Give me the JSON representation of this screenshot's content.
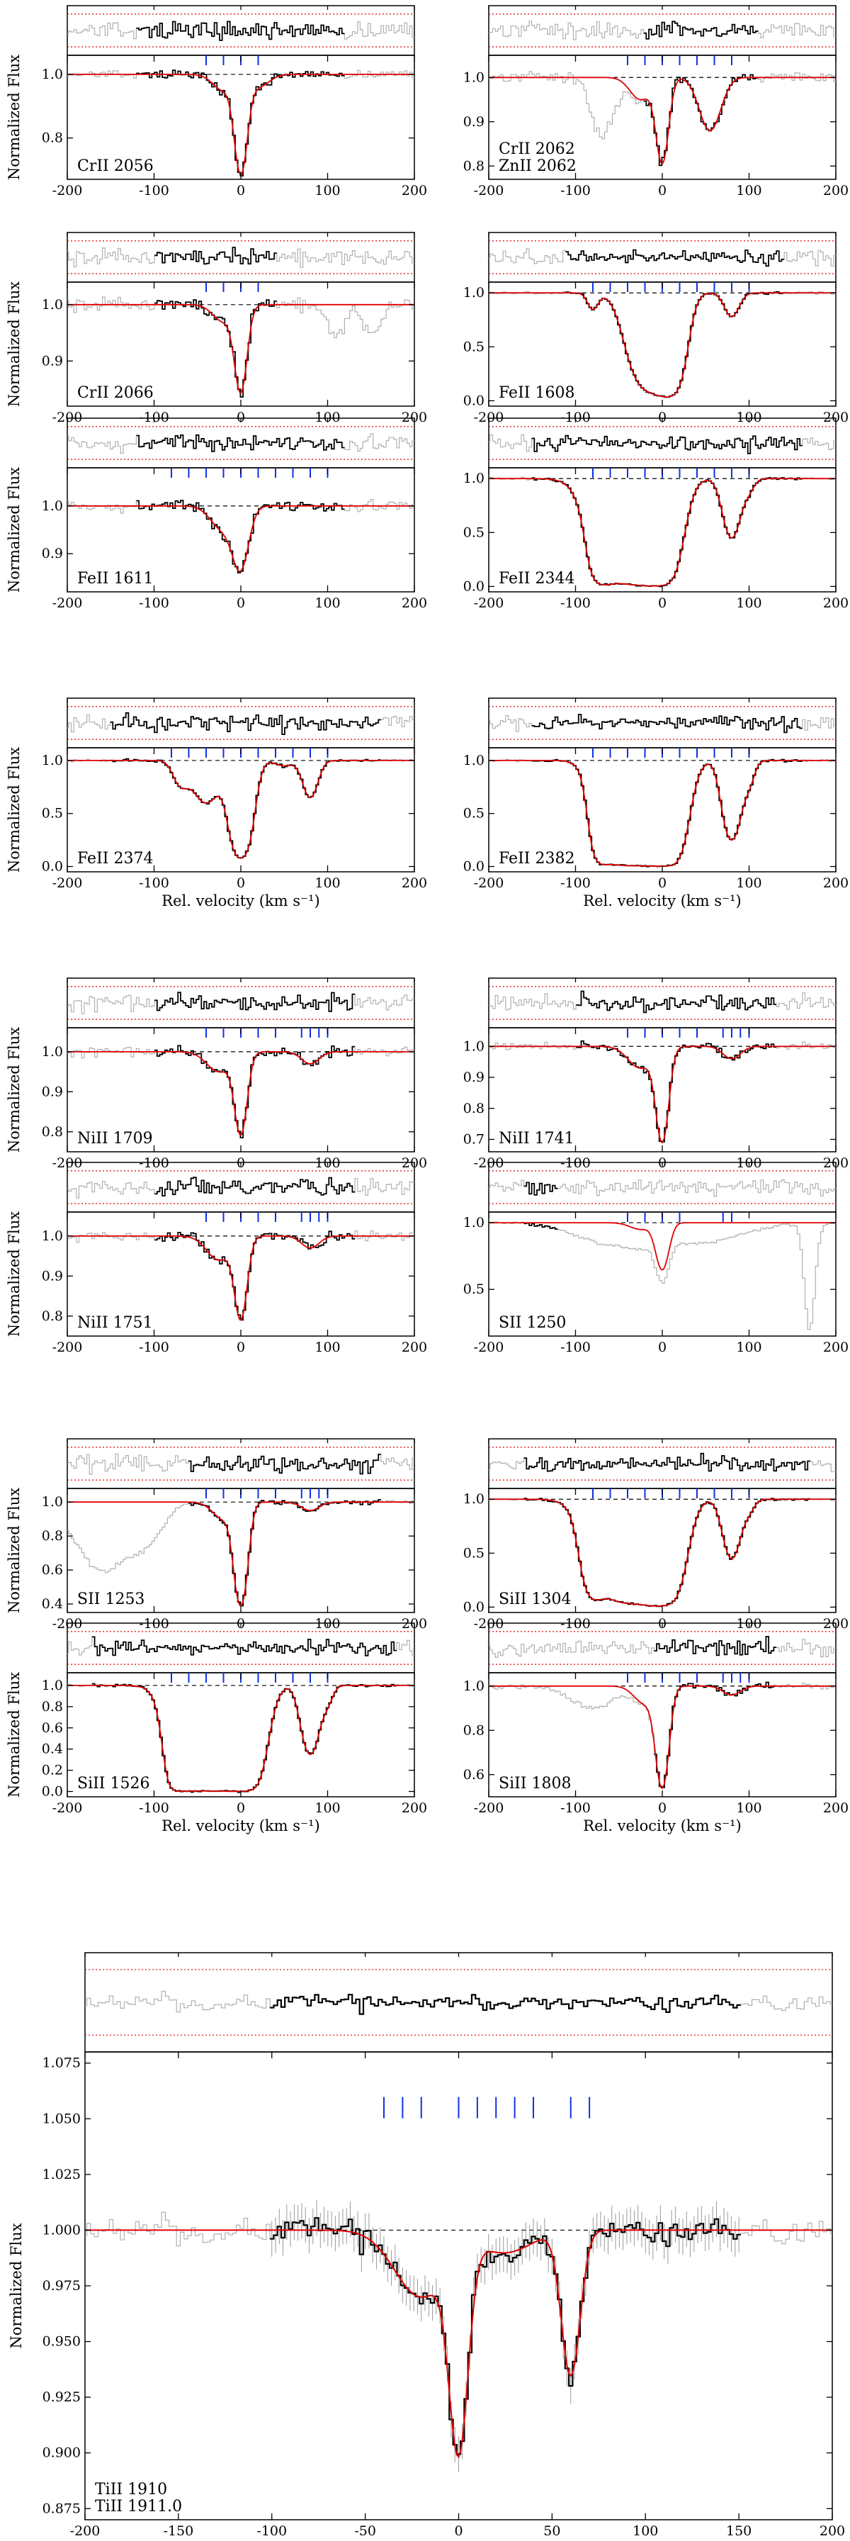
{
  "figure": {
    "ylabel": "Normalized Flux",
    "xlabel": "Rel. velocity  (km s⁻¹)"
  },
  "colors": {
    "data": "#000000",
    "masked_data": "#b0b0b0",
    "model": "#e00000",
    "component_ticks": "#1030e0",
    "continuum": "#000000",
    "residual_bounds": "#e00000"
  },
  "chart_data": [
    {
      "id": "crii2056",
      "type": "line",
      "labels": [
        "CrII 2056"
      ],
      "xlim": [
        -200,
        200
      ],
      "ylim": [
        0.67,
        1.06
      ],
      "yticks": [
        0.8,
        1.0
      ],
      "xticks": [
        -200,
        -100,
        0,
        100,
        200
      ],
      "comps": [
        -40,
        -20,
        0,
        20
      ],
      "lines": [
        {
          "v": 0,
          "d": 0.3,
          "w": 7
        },
        {
          "v": -20,
          "d": 0.05,
          "w": 12
        },
        {
          "v": 20,
          "d": 0.04,
          "w": 12
        }
      ],
      "extra": [],
      "fit": [
        -120,
        120
      ]
    },
    {
      "id": "crii2062",
      "type": "line",
      "labels": [
        "CrII 2062",
        "ZnII 2062"
      ],
      "xlim": [
        -200,
        200
      ],
      "ylim": [
        0.77,
        1.05
      ],
      "yticks": [
        0.8,
        0.9,
        1.0
      ],
      "xticks": [
        -200,
        -100,
        0,
        100,
        200
      ],
      "comps": [
        -40,
        -20,
        0,
        20,
        40,
        60,
        80
      ],
      "lines": [
        {
          "v": 0,
          "d": 0.19,
          "w": 7
        },
        {
          "v": 55,
          "d": 0.12,
          "w": 12
        },
        {
          "v": -25,
          "d": 0.05,
          "w": 12
        }
      ],
      "extra": [
        {
          "v": -75,
          "d": 0.1,
          "w": 9
        },
        {
          "v": -60,
          "d": 0.08,
          "w": 10
        }
      ],
      "fit": [
        -20,
        110
      ]
    },
    {
      "id": "crii2066",
      "type": "line",
      "labels": [
        "CrII 2066"
      ],
      "xlim": [
        -200,
        200
      ],
      "ylim": [
        0.82,
        1.04
      ],
      "yticks": [
        0.9,
        1.0
      ],
      "xticks": [
        -200,
        -100,
        0,
        100,
        200
      ],
      "comps": [
        -40,
        -20,
        0,
        20
      ],
      "lines": [
        {
          "v": 0,
          "d": 0.15,
          "w": 7
        },
        {
          "v": -20,
          "d": 0.03,
          "w": 12
        }
      ],
      "extra": [
        {
          "v": 110,
          "d": 0.06,
          "w": 9
        },
        {
          "v": 150,
          "d": 0.05,
          "w": 10
        }
      ],
      "fit": [
        -100,
        40
      ]
    },
    {
      "id": "feii1608",
      "type": "line",
      "labels": [
        "FeII 1608"
      ],
      "xlim": [
        -200,
        200
      ],
      "ylim": [
        -0.05,
        1.1
      ],
      "yticks": [
        0.0,
        0.5,
        1.0
      ],
      "xticks": [
        -200,
        -100,
        0,
        100,
        200
      ],
      "comps": [
        -80,
        -60,
        -40,
        -20,
        0,
        20,
        40,
        60,
        80,
        100
      ],
      "lines": [
        {
          "v": -15,
          "d": 0.9,
          "w": 18
        },
        {
          "v": 10,
          "d": 0.9,
          "w": 12
        },
        {
          "v": 80,
          "d": 0.22,
          "w": 8
        },
        {
          "v": -80,
          "d": 0.15,
          "w": 6
        }
      ],
      "extra": [],
      "fit": [
        -110,
        140
      ]
    },
    {
      "id": "feii1611",
      "type": "line",
      "labels": [
        "FeII 1611"
      ],
      "xlim": [
        -200,
        200
      ],
      "ylim": [
        0.82,
        1.08
      ],
      "yticks": [
        0.9,
        1.0
      ],
      "xticks": [
        -200,
        -100,
        0,
        100,
        200
      ],
      "comps": [
        -80,
        -60,
        -40,
        -20,
        0,
        20,
        40,
        60,
        80,
        100
      ],
      "lines": [
        {
          "v": 0,
          "d": 0.12,
          "w": 9
        },
        {
          "v": -20,
          "d": 0.05,
          "w": 14
        }
      ],
      "extra": [],
      "fit": [
        -120,
        120
      ]
    },
    {
      "id": "feii2344",
      "type": "line",
      "labels": [
        "FeII 2344"
      ],
      "xlim": [
        -200,
        200
      ],
      "ylim": [
        -0.05,
        1.1
      ],
      "yticks": [
        0.0,
        0.5,
        1.0
      ],
      "xticks": [
        -200,
        -100,
        0,
        100,
        200
      ],
      "comps": [
        -80,
        -60,
        -40,
        -20,
        0,
        20,
        40,
        60,
        80,
        100
      ],
      "lines": [
        {
          "v": -40,
          "d": 0.97,
          "w": 25
        },
        {
          "v": -5,
          "d": 0.98,
          "w": 16
        },
        {
          "v": -70,
          "d": 0.9,
          "w": 10
        },
        {
          "v": 80,
          "d": 0.55,
          "w": 9
        },
        {
          "v": 100,
          "d": 0.1,
          "w": 6
        }
      ],
      "extra": [],
      "fit": [
        -150,
        160
      ]
    },
    {
      "id": "feii2374",
      "type": "line",
      "labels": [
        "FeII 2374"
      ],
      "xlim": [
        -200,
        200
      ],
      "ylim": [
        -0.05,
        1.12
      ],
      "yticks": [
        0.0,
        0.5,
        1.0
      ],
      "xticks": [
        -200,
        -100,
        0,
        100,
        200
      ],
      "comps": [
        -80,
        -60,
        -40,
        -20,
        0,
        20,
        40,
        60,
        80,
        100
      ],
      "lines": [
        {
          "v": 0,
          "d": 0.92,
          "w": 10
        },
        {
          "v": -40,
          "d": 0.4,
          "w": 15
        },
        {
          "v": -70,
          "d": 0.2,
          "w": 8
        },
        {
          "v": 80,
          "d": 0.35,
          "w": 8
        },
        {
          "v": 50,
          "d": 0.05,
          "w": 10
        }
      ],
      "extra": [],
      "fit": [
        -150,
        160
      ]
    },
    {
      "id": "feii2382",
      "type": "line",
      "labels": [
        "FeII 2382"
      ],
      "xlim": [
        -200,
        200
      ],
      "ylim": [
        -0.05,
        1.12
      ],
      "yticks": [
        0.0,
        0.5,
        1.0
      ],
      "xticks": [
        -200,
        -100,
        0,
        100,
        200
      ],
      "comps": [
        -80,
        -60,
        -40,
        -20,
        0,
        20,
        40,
        60,
        80,
        100
      ],
      "lines": [
        {
          "v": -40,
          "d": 0.99,
          "w": 20
        },
        {
          "v": 0,
          "d": 1.0,
          "w": 16
        },
        {
          "v": -70,
          "d": 0.9,
          "w": 9
        },
        {
          "v": 80,
          "d": 0.75,
          "w": 9
        },
        {
          "v": 100,
          "d": 0.2,
          "w": 6
        }
      ],
      "extra": [],
      "fit": [
        -150,
        160
      ]
    },
    {
      "id": "niii1709",
      "type": "line",
      "labels": [
        "NiII 1709"
      ],
      "xlim": [
        -200,
        200
      ],
      "ylim": [
        0.75,
        1.06
      ],
      "yticks": [
        0.8,
        0.9,
        1.0
      ],
      "xticks": [
        -200,
        -100,
        0,
        100,
        200
      ],
      "comps": [
        -40,
        -20,
        0,
        20,
        40,
        70,
        80,
        90,
        100
      ],
      "lines": [
        {
          "v": 0,
          "d": 0.2,
          "w": 7
        },
        {
          "v": -25,
          "d": 0.05,
          "w": 14
        },
        {
          "v": 80,
          "d": 0.03,
          "w": 10
        }
      ],
      "extra": [],
      "fit": [
        -100,
        130
      ]
    },
    {
      "id": "niii1741",
      "type": "line",
      "labels": [
        "NiII 1741"
      ],
      "xlim": [
        -200,
        200
      ],
      "ylim": [
        0.66,
        1.06
      ],
      "yticks": [
        0.7,
        0.8,
        0.9,
        1.0
      ],
      "xticks": [
        -200,
        -100,
        0,
        100,
        200
      ],
      "comps": [
        -40,
        -20,
        0,
        20,
        40,
        70,
        80,
        90,
        100
      ],
      "lines": [
        {
          "v": 0,
          "d": 0.3,
          "w": 7
        },
        {
          "v": -25,
          "d": 0.07,
          "w": 14
        },
        {
          "v": 80,
          "d": 0.04,
          "w": 10
        }
      ],
      "extra": [],
      "fit": [
        -100,
        130
      ]
    },
    {
      "id": "niii1751",
      "type": "line",
      "labels": [
        "NiII 1751"
      ],
      "xlim": [
        -200,
        200
      ],
      "ylim": [
        0.75,
        1.06
      ],
      "yticks": [
        0.8,
        0.9,
        1.0
      ],
      "xticks": [
        -200,
        -100,
        0,
        100,
        200
      ],
      "comps": [
        -40,
        -20,
        0,
        20,
        40,
        70,
        80,
        90,
        100
      ],
      "lines": [
        {
          "v": 0,
          "d": 0.2,
          "w": 7
        },
        {
          "v": -25,
          "d": 0.06,
          "w": 14
        },
        {
          "v": 80,
          "d": 0.03,
          "w": 10
        }
      ],
      "extra": [],
      "fit": [
        -100,
        130
      ]
    },
    {
      "id": "sii1250",
      "type": "line",
      "labels": [
        "SII 1250"
      ],
      "xlim": [
        -200,
        200
      ],
      "ylim": [
        0.15,
        1.08
      ],
      "yticks": [
        0.5,
        1.0
      ],
      "xticks": [
        -200,
        -100,
        0,
        100,
        200
      ],
      "comps": [
        -40,
        -20,
        0,
        20,
        70,
        80
      ],
      "lines": [
        {
          "v": 0,
          "d": 0.35,
          "w": 7
        },
        {
          "v": -25,
          "d": 0.05,
          "w": 12
        }
      ],
      "extra": [
        {
          "v": -60,
          "d": 0.15,
          "w": 40
        },
        {
          "v": 40,
          "d": 0.15,
          "w": 50
        },
        {
          "v": 170,
          "d": 0.8,
          "w": 6
        }
      ],
      "fit": [
        -160,
        -120
      ]
    },
    {
      "id": "sii1253",
      "type": "line",
      "labels": [
        "SII 1253"
      ],
      "xlim": [
        -200,
        200
      ],
      "ylim": [
        0.35,
        1.08
      ],
      "yticks": [
        0.4,
        0.6,
        0.8,
        1.0
      ],
      "xticks": [
        -200,
        -100,
        0,
        100,
        200
      ],
      "comps": [
        -40,
        -20,
        0,
        20,
        40,
        70,
        80,
        90,
        100
      ],
      "lines": [
        {
          "v": 0,
          "d": 0.6,
          "w": 7
        },
        {
          "v": -20,
          "d": 0.1,
          "w": 12
        },
        {
          "v": 80,
          "d": 0.05,
          "w": 10
        }
      ],
      "extra": [
        {
          "v": -160,
          "d": 0.4,
          "w": 30
        },
        {
          "v": -110,
          "d": 0.2,
          "w": 20
        }
      ],
      "fit": [
        -60,
        160
      ]
    },
    {
      "id": "siii1304",
      "type": "line",
      "labels": [
        "SiII 1304"
      ],
      "xlim": [
        -200,
        200
      ],
      "ylim": [
        -0.05,
        1.1
      ],
      "yticks": [
        0.0,
        0.5,
        1.0
      ],
      "xticks": [
        -200,
        -100,
        0,
        100,
        200
      ],
      "comps": [
        -80,
        -60,
        -40,
        -20,
        0,
        20,
        40,
        60,
        80,
        100
      ],
      "lines": [
        {
          "v": -40,
          "d": 0.96,
          "w": 26
        },
        {
          "v": 0,
          "d": 0.97,
          "w": 16
        },
        {
          "v": -80,
          "d": 0.8,
          "w": 10
        },
        {
          "v": 80,
          "d": 0.55,
          "w": 9
        },
        {
          "v": 100,
          "d": 0.1,
          "w": 6
        }
      ],
      "extra": [],
      "fit": [
        -160,
        170
      ]
    },
    {
      "id": "siii1526",
      "type": "line",
      "labels": [
        "SiII 1526"
      ],
      "xlim": [
        -200,
        200
      ],
      "ylim": [
        -0.05,
        1.12
      ],
      "yticks": [
        0.0,
        0.2,
        0.4,
        0.6,
        0.8,
        1.0
      ],
      "xticks": [
        -200,
        -100,
        0,
        100,
        200
      ],
      "comps": [
        -80,
        -60,
        -40,
        -20,
        0,
        20,
        40,
        60,
        80,
        100
      ],
      "lines": [
        {
          "v": -40,
          "d": 1.0,
          "w": 22
        },
        {
          "v": 0,
          "d": 1.0,
          "w": 16
        },
        {
          "v": -70,
          "d": 0.98,
          "w": 10
        },
        {
          "v": 80,
          "d": 0.65,
          "w": 9
        },
        {
          "v": 100,
          "d": 0.15,
          "w": 6
        }
      ],
      "extra": [],
      "fit": [
        -170,
        180
      ]
    },
    {
      "id": "siii1808",
      "type": "line",
      "labels": [
        "SiII 1808"
      ],
      "xlim": [
        -200,
        200
      ],
      "ylim": [
        0.5,
        1.06
      ],
      "yticks": [
        0.6,
        0.8,
        1.0
      ],
      "xticks": [
        -200,
        -100,
        0,
        100,
        200
      ],
      "comps": [
        -40,
        -20,
        0,
        20,
        40,
        70,
        80,
        90,
        100
      ],
      "lines": [
        {
          "v": 0,
          "d": 0.45,
          "w": 7
        },
        {
          "v": -20,
          "d": 0.08,
          "w": 12
        },
        {
          "v": 80,
          "d": 0.04,
          "w": 10
        }
      ],
      "extra": [
        {
          "v": -80,
          "d": 0.1,
          "w": 25
        }
      ],
      "fit": [
        -10,
        130
      ]
    },
    {
      "id": "tiii1910",
      "type": "line",
      "labels": [
        "TiII 1910",
        "TiII 1911.0"
      ],
      "xlim": [
        -200,
        200
      ],
      "ylim": [
        0.87,
        1.08
      ],
      "yticks": [
        0.875,
        0.9,
        0.925,
        0.95,
        0.975,
        1.0,
        1.025,
        1.05,
        1.075
      ],
      "xticks": [
        -200,
        -150,
        -100,
        -50,
        0,
        50,
        100,
        150,
        200
      ],
      "comps": [
        -40,
        -30,
        -20,
        0,
        10,
        20,
        30,
        40,
        60,
        70
      ],
      "lines": [
        {
          "v": 0,
          "d": 0.09,
          "w": 5
        },
        {
          "v": -20,
          "d": 0.03,
          "w": 14
        },
        {
          "v": 25,
          "d": 0.01,
          "w": 14
        },
        {
          "v": 60,
          "d": 0.065,
          "w": 5
        }
      ],
      "extra": [],
      "fit": [
        -100,
        150
      ]
    }
  ]
}
